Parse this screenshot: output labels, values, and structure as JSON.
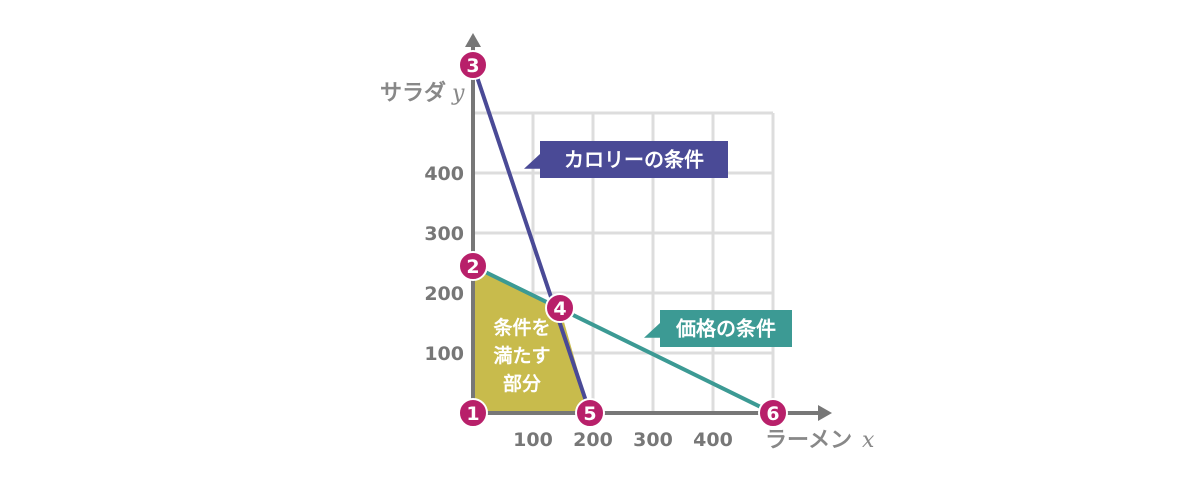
{
  "chart_data": {
    "type": "line",
    "xlabel": "ラーメン",
    "xvar": "x",
    "ylabel": "サラダ",
    "yvar": "y",
    "xlim": [
      0,
      500
    ],
    "ylim": [
      0,
      500
    ],
    "xticks": [
      100,
      200,
      300,
      400
    ],
    "yticks": [
      100,
      200,
      300,
      400
    ],
    "grid": true,
    "colors": {
      "calorie": "#4a4a96",
      "price": "#3c9a94",
      "region": "#c8bb4c",
      "points": "#b8206a",
      "grid": "#dddddd",
      "axis": "#777777"
    },
    "series": [
      {
        "name": "カロリーの条件",
        "x": [
          0,
          195
        ],
        "y": [
          580,
          0
        ]
      },
      {
        "name": "価格の条件",
        "x": [
          0,
          500
        ],
        "y": [
          245,
          0
        ]
      }
    ],
    "region": {
      "label_lines": [
        "条件を",
        "満たす",
        "部分"
      ],
      "x": [
        0,
        0,
        145,
        195
      ],
      "y": [
        0,
        245,
        175,
        0
      ]
    },
    "points": [
      {
        "label": "1",
        "x": 0,
        "y": 0
      },
      {
        "label": "2",
        "x": 0,
        "y": 245
      },
      {
        "label": "3",
        "x": 0,
        "y": 580
      },
      {
        "label": "4",
        "x": 145,
        "y": 175
      },
      {
        "label": "5",
        "x": 195,
        "y": 0
      },
      {
        "label": "6",
        "x": 500,
        "y": 0
      }
    ],
    "annotations": [
      {
        "text": "カロリーの条件",
        "anchor_series": "カロリーの条件"
      },
      {
        "text": "価格の条件",
        "anchor_series": "価格の条件"
      }
    ]
  }
}
